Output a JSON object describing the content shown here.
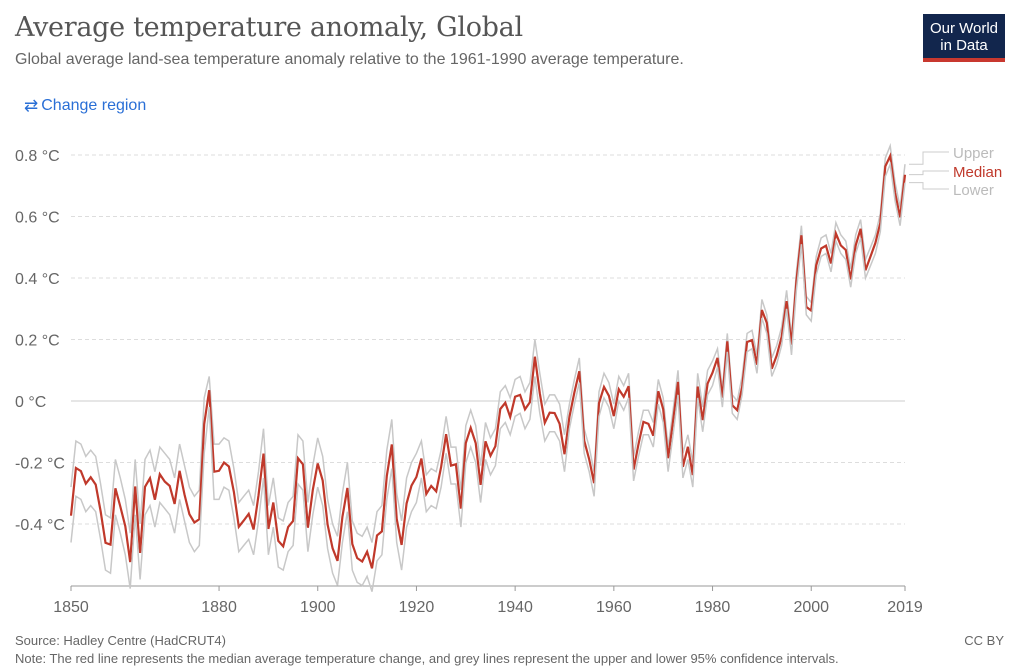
{
  "header": {
    "title": "Average temperature anomaly, Global",
    "subtitle": "Global average land-sea temperature anomaly relative to the 1961-1990 average temperature.",
    "change_region": "Change region",
    "change_icon": "swap-arrows-icon"
  },
  "logo": {
    "text": "Our World in Data",
    "bg": "#12264d",
    "accent": "#c8382f"
  },
  "footer": {
    "source": "Source: Hadley Centre (HadCRUT4)",
    "note": "Note: The red line represents the median average temperature change, and grey lines represent the upper and lower 95% confidence intervals.",
    "license": "CC BY"
  },
  "chart_data": {
    "type": "line",
    "title": "Average temperature anomaly, Global",
    "xlim": [
      1850,
      2019
    ],
    "ylim": [
      -0.6,
      0.85
    ],
    "grid": true,
    "legend_placement": "right",
    "x_ticks": [
      "1850",
      "1880",
      "1900",
      "1920",
      "1940",
      "1960",
      "1980",
      "2000",
      "2019"
    ],
    "x_tick_values": [
      1850,
      1880,
      1900,
      1920,
      1940,
      1960,
      1980,
      2000,
      2019
    ],
    "y_ticks": [
      "-0.4 °C",
      "-0.2 °C",
      "0 °C",
      "0.2 °C",
      "0.4 °C",
      "0.6 °C",
      "0.8 °C"
    ],
    "y_tick_values": [
      -0.4,
      -0.2,
      0,
      0.2,
      0.4,
      0.6,
      0.8
    ],
    "series": [
      {
        "name": "Upper",
        "color": "#c8c8c8",
        "values": [
          -0.28,
          -0.13,
          -0.14,
          -0.18,
          -0.16,
          -0.18,
          -0.27,
          -0.37,
          -0.38,
          -0.19,
          -0.25,
          -0.32,
          -0.43,
          -0.19,
          -0.4,
          -0.19,
          -0.16,
          -0.23,
          -0.15,
          -0.17,
          -0.19,
          -0.25,
          -0.14,
          -0.21,
          -0.28,
          -0.31,
          -0.29,
          0.01,
          0.08,
          -0.14,
          -0.14,
          -0.12,
          -0.13,
          -0.22,
          -0.33,
          -0.31,
          -0.29,
          -0.34,
          -0.23,
          -0.09,
          -0.34,
          -0.25,
          -0.38,
          -0.39,
          -0.33,
          -0.31,
          -0.11,
          -0.13,
          -0.33,
          -0.21,
          -0.12,
          -0.18,
          -0.32,
          -0.4,
          -0.44,
          -0.3,
          -0.2,
          -0.39,
          -0.43,
          -0.44,
          -0.41,
          -0.46,
          -0.36,
          -0.34,
          -0.16,
          -0.06,
          -0.3,
          -0.39,
          -0.25,
          -0.2,
          -0.17,
          -0.13,
          -0.24,
          -0.22,
          -0.23,
          -0.16,
          -0.05,
          -0.15,
          -0.15,
          -0.29,
          -0.08,
          -0.03,
          -0.08,
          -0.21,
          -0.07,
          -0.12,
          -0.09,
          0.03,
          0.05,
          0.01,
          0.07,
          0.08,
          0.03,
          0.06,
          0.2,
          0.09,
          -0.01,
          0.02,
          0.02,
          -0.01,
          -0.11,
          -0.01,
          0.07,
          0.14,
          -0.09,
          -0.15,
          -0.23,
          0.03,
          0.09,
          0.06,
          -0.01,
          0.08,
          0.05,
          0.09,
          -0.18,
          -0.1,
          -0.03,
          -0.03,
          -0.07,
          0.07,
          0.01,
          -0.15,
          -0.03,
          0.1,
          -0.17,
          -0.11,
          -0.2,
          0.09,
          -0.02,
          0.1,
          0.13,
          0.17,
          0.04,
          0.22,
          0.02,
          0.0,
          0.08,
          0.22,
          0.23,
          0.15,
          0.33,
          0.28,
          0.14,
          0.18,
          0.24,
          0.36,
          0.21,
          0.42,
          0.57,
          0.34,
          0.32,
          0.47,
          0.53,
          0.54,
          0.48,
          0.58,
          0.54,
          0.52,
          0.43,
          0.54,
          0.59,
          0.46,
          0.5,
          0.54,
          0.61,
          0.79,
          0.83,
          0.71,
          0.63,
          0.77
        ]
      },
      {
        "name": "Median",
        "color": "#c0392b",
        "values": [
          -0.373,
          -0.218,
          -0.228,
          -0.269,
          -0.248,
          -0.272,
          -0.358,
          -0.461,
          -0.467,
          -0.284,
          -0.343,
          -0.407,
          -0.524,
          -0.278,
          -0.494,
          -0.279,
          -0.251,
          -0.321,
          -0.238,
          -0.262,
          -0.276,
          -0.335,
          -0.227,
          -0.304,
          -0.368,
          -0.395,
          -0.384,
          -0.075,
          0.035,
          -0.23,
          -0.227,
          -0.2,
          -0.213,
          -0.296,
          -0.409,
          -0.389,
          -0.367,
          -0.418,
          -0.307,
          -0.171,
          -0.416,
          -0.33,
          -0.455,
          -0.473,
          -0.41,
          -0.39,
          -0.186,
          -0.206,
          -0.412,
          -0.289,
          -0.203,
          -0.259,
          -0.402,
          -0.479,
          -0.52,
          -0.377,
          -0.283,
          -0.465,
          -0.511,
          -0.522,
          -0.49,
          -0.544,
          -0.437,
          -0.424,
          -0.244,
          -0.141,
          -0.383,
          -0.468,
          -0.333,
          -0.275,
          -0.247,
          -0.187,
          -0.302,
          -0.276,
          -0.294,
          -0.215,
          -0.108,
          -0.21,
          -0.206,
          -0.35,
          -0.137,
          -0.087,
          -0.137,
          -0.273,
          -0.131,
          -0.178,
          -0.147,
          -0.026,
          -0.006,
          -0.052,
          0.014,
          0.02,
          -0.027,
          -0.004,
          0.144,
          0.025,
          -0.071,
          -0.038,
          -0.039,
          -0.074,
          -0.173,
          -0.052,
          0.028,
          0.097,
          -0.129,
          -0.19,
          -0.267,
          -0.007,
          0.046,
          0.017,
          -0.049,
          0.038,
          0.014,
          0.048,
          -0.223,
          -0.14,
          -0.068,
          -0.074,
          -0.113,
          0.032,
          -0.027,
          -0.186,
          -0.065,
          0.062,
          -0.214,
          -0.149,
          -0.241,
          0.047,
          -0.062,
          0.057,
          0.092,
          0.14,
          0.011,
          0.194,
          -0.014,
          -0.03,
          0.045,
          0.192,
          0.198,
          0.118,
          0.296,
          0.254,
          0.105,
          0.148,
          0.208,
          0.325,
          0.183,
          0.39,
          0.539,
          0.306,
          0.294,
          0.441,
          0.496,
          0.505,
          0.447,
          0.545,
          0.506,
          0.491,
          0.395,
          0.506,
          0.56,
          0.425,
          0.47,
          0.514,
          0.579,
          0.763,
          0.797,
          0.677,
          0.597,
          0.736
        ]
      },
      {
        "name": "Lower",
        "color": "#c8c8c8",
        "values": [
          -0.46,
          -0.31,
          -0.32,
          -0.36,
          -0.34,
          -0.36,
          -0.45,
          -0.55,
          -0.56,
          -0.37,
          -0.43,
          -0.5,
          -0.61,
          -0.37,
          -0.58,
          -0.37,
          -0.34,
          -0.41,
          -0.33,
          -0.35,
          -0.37,
          -0.43,
          -0.32,
          -0.39,
          -0.46,
          -0.49,
          -0.47,
          -0.17,
          -0.02,
          -0.32,
          -0.32,
          -0.28,
          -0.29,
          -0.38,
          -0.49,
          -0.47,
          -0.45,
          -0.5,
          -0.39,
          -0.25,
          -0.5,
          -0.41,
          -0.54,
          -0.55,
          -0.49,
          -0.47,
          -0.27,
          -0.29,
          -0.49,
          -0.37,
          -0.28,
          -0.34,
          -0.48,
          -0.56,
          -0.6,
          -0.46,
          -0.36,
          -0.55,
          -0.59,
          -0.6,
          -0.57,
          -0.62,
          -0.52,
          -0.5,
          -0.32,
          -0.22,
          -0.46,
          -0.55,
          -0.41,
          -0.36,
          -0.33,
          -0.25,
          -0.36,
          -0.34,
          -0.35,
          -0.28,
          -0.17,
          -0.27,
          -0.27,
          -0.41,
          -0.2,
          -0.15,
          -0.2,
          -0.33,
          -0.19,
          -0.24,
          -0.21,
          -0.09,
          -0.07,
          -0.11,
          -0.05,
          -0.04,
          -0.09,
          -0.06,
          0.08,
          -0.04,
          -0.13,
          -0.1,
          -0.1,
          -0.13,
          -0.23,
          -0.09,
          -0.01,
          0.06,
          -0.17,
          -0.23,
          -0.31,
          -0.05,
          0.01,
          -0.02,
          -0.09,
          0.0,
          -0.03,
          0.01,
          -0.26,
          -0.18,
          -0.11,
          -0.11,
          -0.15,
          -0.01,
          -0.07,
          -0.23,
          -0.11,
          0.02,
          -0.25,
          -0.19,
          -0.28,
          0.01,
          -0.1,
          0.02,
          0.05,
          0.11,
          -0.02,
          0.16,
          -0.04,
          -0.06,
          0.02,
          0.16,
          0.17,
          0.09,
          0.27,
          0.22,
          0.08,
          0.12,
          0.18,
          0.3,
          0.15,
          0.36,
          0.51,
          0.28,
          0.26,
          0.41,
          0.47,
          0.48,
          0.42,
          0.52,
          0.48,
          0.46,
          0.37,
          0.48,
          0.53,
          0.4,
          0.44,
          0.48,
          0.55,
          0.73,
          0.77,
          0.65,
          0.57,
          0.71
        ]
      }
    ]
  }
}
